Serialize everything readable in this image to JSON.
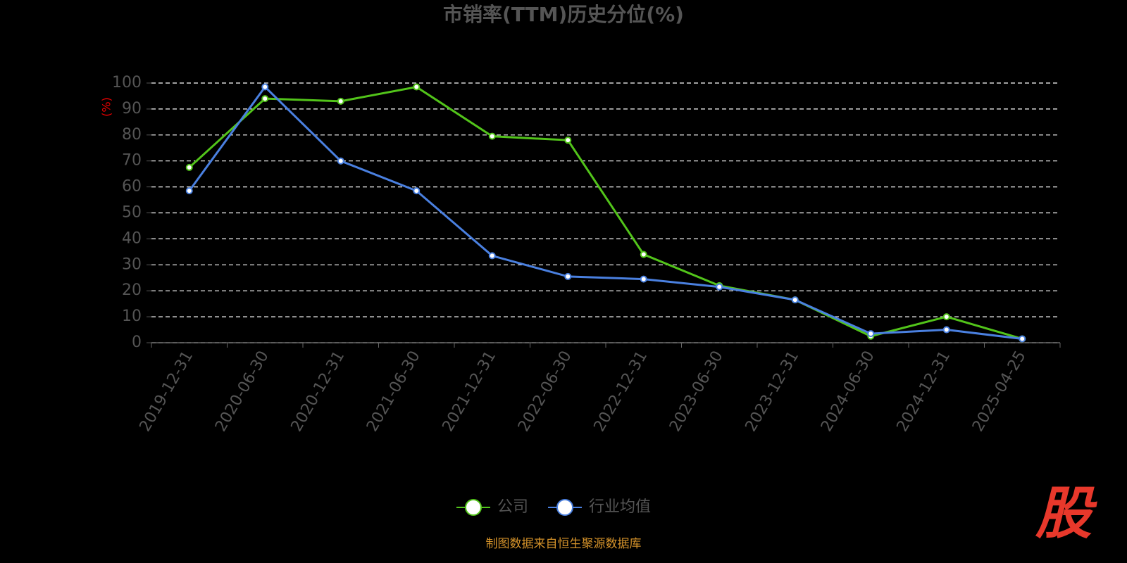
{
  "chart_data": {
    "type": "line",
    "title": "市销率(TTM)历史分位(%)",
    "y_label": "(%)",
    "categories": [
      "2019-12-31",
      "2020-06-30",
      "2020-12-31",
      "2021-06-30",
      "2021-12-31",
      "2022-06-30",
      "2022-12-31",
      "2023-06-30",
      "2023-12-31",
      "2024-06-30",
      "2024-12-31",
      "2025-04-25"
    ],
    "series": [
      {
        "name": "公司",
        "color": "#52c41a",
        "values": [
          67.5,
          94,
          93,
          98.5,
          79.5,
          78,
          34,
          22,
          16.5,
          2.5,
          10,
          1.5
        ]
      },
      {
        "name": "行业均值",
        "color": "#4a80e0",
        "values": [
          58.5,
          98.5,
          70,
          58.5,
          33.5,
          25.5,
          24.5,
          21.5,
          16.5,
          3.5,
          5,
          1.5
        ]
      }
    ],
    "ylim": [
      0,
      100
    ],
    "yticks": [
      0,
      10,
      20,
      30,
      40,
      50,
      60,
      70,
      80,
      90,
      100
    ],
    "grid": true,
    "legend": "bottom",
    "source": "制图数据来自恒生聚源数据库",
    "logo": "股"
  }
}
